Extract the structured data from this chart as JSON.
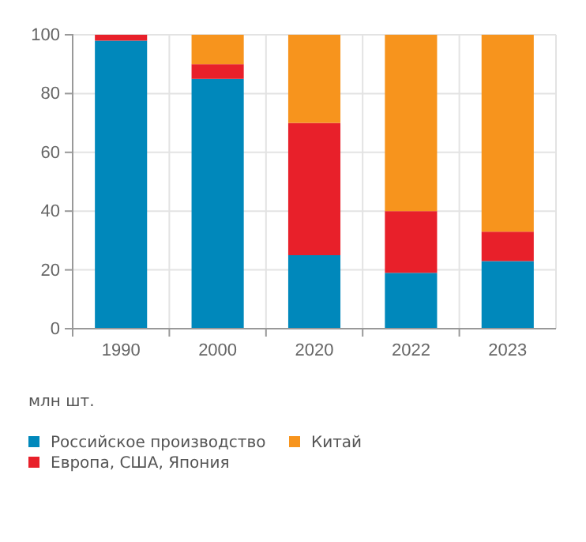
{
  "chart_data": {
    "type": "bar",
    "stacked": true,
    "ylabel": "млн шт.",
    "categories": [
      "1990",
      "2000",
      "2020",
      "2022",
      "2023"
    ],
    "series": [
      {
        "name": "Российское производство",
        "color": "#0088bb",
        "values": [
          98,
          85,
          25,
          19,
          23
        ]
      },
      {
        "name": "Европа, США, Япония",
        "color": "#e8202a",
        "values": [
          2,
          5,
          45,
          21,
          10
        ]
      },
      {
        "name": "Китай",
        "color": "#f7941d",
        "values": [
          0,
          10,
          30,
          60,
          67
        ]
      }
    ],
    "ylim": [
      0,
      100
    ],
    "yticks": [
      0,
      20,
      40,
      60,
      80,
      100
    ],
    "grid": true,
    "legend": "bottom"
  }
}
